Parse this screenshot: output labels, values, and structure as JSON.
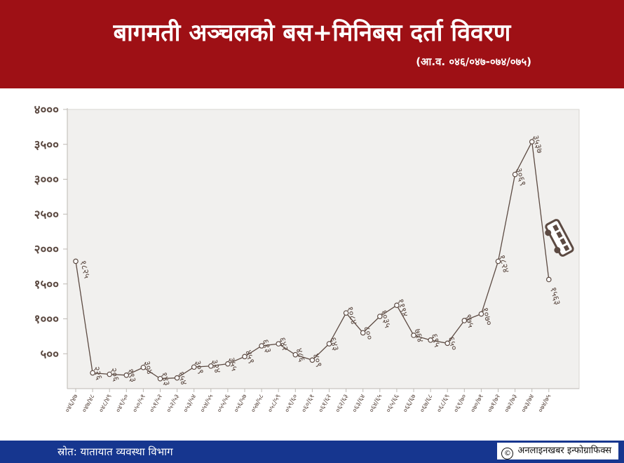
{
  "header": {
    "title": "बागमती अञ्चलको बस+मिनिबस दर्ता विवरण",
    "subtitle": "(आ.व. ०४६/०४७-०७४/०७५)"
  },
  "footer": {
    "source": "स्रोत: यातायात व्यवस्था विभाग",
    "credit_symbol": "©",
    "credit": "अनलाइनखबर इन्फोग्राफिक्स"
  },
  "colors": {
    "header_bg": "#9e1015",
    "footer_bg": "#16368f",
    "plot_bg": "#f1f0ee",
    "line": "#5c4a42",
    "text": "#5c4a42"
  },
  "chart_data": {
    "type": "line",
    "title": "बागमती अञ्चलको बस+मिनिबस दर्ता विवरण",
    "xlabel": "",
    "ylabel": "",
    "ylim": [
      0,
      4000
    ],
    "y_ticks": [
      500,
      1000,
      1500,
      2000,
      2500,
      3000,
      3500,
      4000
    ],
    "y_tick_labels": [
      "५००",
      "१०००",
      "१५००",
      "२०००",
      "२५००",
      "३०००",
      "३५००",
      "४०००"
    ],
    "grid": false,
    "legend": "none",
    "categories": [
      "०४६/४७",
      "०४७/४८",
      "०४८/४९",
      "०४९/५०",
      "०५०/५१",
      "०५१/५२",
      "०५२/५३",
      "०५३/५४",
      "०५४/५५",
      "०५५/५६",
      "०५६/५७",
      "०५७/५८",
      "०५८/५९",
      "०५९/६०",
      "०६०/६१",
      "०६१/६२",
      "०६२/६३",
      "०६३/६४",
      "०६४/६५",
      "०६५/६६",
      "०६६/६७",
      "०६७/६८",
      "०६८/६९",
      "०६९/७०",
      "०७०/७१",
      "०७१/७२",
      "०७२/७३",
      "०७३/७४",
      "०७४/७५"
    ],
    "values": [
      1825,
      226,
      206,
      193,
      304,
      143,
      154,
      309,
      324,
      355,
      459,
      613,
      642,
      486,
      409,
      643,
      1084,
      800,
      1035,
      1194,
      764,
      695,
      650,
      975,
      1070,
      1824,
      3069,
      3537,
      1563
    ],
    "data_labels": [
      "१८२५",
      "२२६",
      "२०६",
      "१९३",
      "३०४",
      "१४३",
      "१५४",
      "३०९",
      "३२४",
      "३५५",
      "४५९",
      "६१३",
      "६४२",
      "४८६",
      "४०९",
      "६४३",
      "१०८४",
      "८००",
      "१०३५",
      "११९४",
      "७६४",
      "६९५",
      "६५०",
      "९७५",
      "१०७०",
      "१८२४",
      "३०६९",
      "३५३७",
      "१५६३"
    ],
    "icon": "bus-icon"
  }
}
